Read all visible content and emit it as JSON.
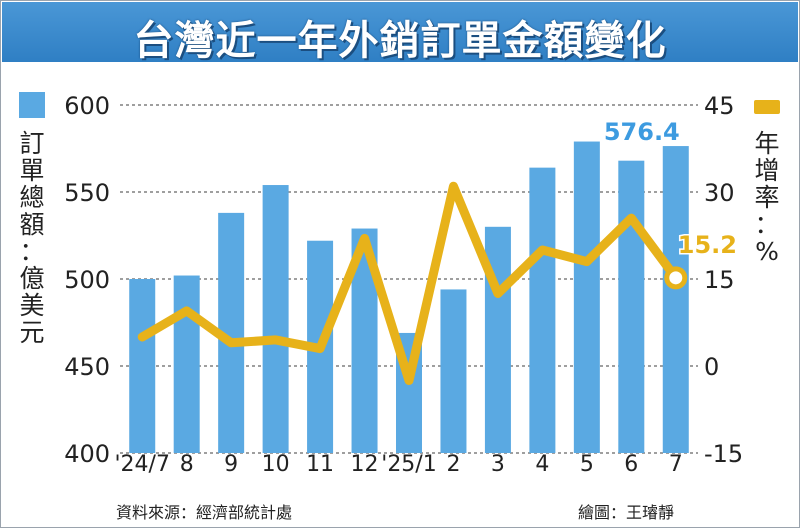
{
  "header": {
    "title": "台灣近一年外銷訂單金額變化"
  },
  "legend": {
    "bar_label": "訂單總額：億美元",
    "line_label": "年增率：%"
  },
  "footer": {
    "source": "資料來源：經濟部統計處",
    "credit": "繪圖：王璿靜"
  },
  "colors": {
    "bar": "#5aa9e2",
    "line": "#e7b21a",
    "title_bg": "#3a8ad0",
    "annotation_bar": "#3d9be0"
  },
  "chart_data": {
    "type": "bar+line",
    "categories": [
      "'24/7",
      "8",
      "9",
      "10",
      "11",
      "12",
      "'25/1",
      "2",
      "3",
      "4",
      "5",
      "6",
      "7"
    ],
    "series": [
      {
        "axis": "left",
        "kind": "bar",
        "values": [
          500,
          502,
          538,
          554,
          522,
          529,
          469,
          494,
          530,
          564,
          579,
          568,
          576.4
        ]
      },
      {
        "axis": "right",
        "kind": "line",
        "values": [
          5,
          9.5,
          4,
          4.5,
          3,
          22,
          -2.5,
          31,
          12.5,
          20,
          18,
          25.5,
          15.2
        ]
      }
    ],
    "left_axis": {
      "ticks": [
        400,
        450,
        500,
        550,
        600
      ],
      "ylim": [
        400,
        600
      ]
    },
    "right_axis": {
      "ticks": [
        -15,
        0,
        15,
        30,
        45
      ],
      "ylim": [
        -15,
        45
      ]
    },
    "annotations": [
      {
        "series": 0,
        "index": 12,
        "text": "576.4"
      },
      {
        "series": 1,
        "index": 12,
        "text": "15.2"
      }
    ],
    "grid": "horizontal"
  }
}
